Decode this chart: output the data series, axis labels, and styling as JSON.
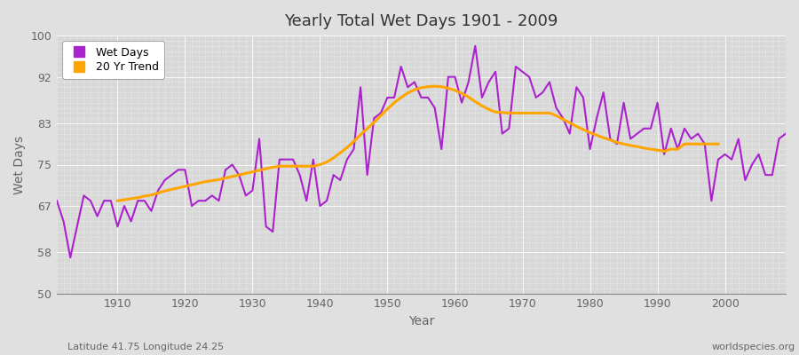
{
  "title": "Yearly Total Wet Days 1901 - 2009",
  "xlabel": "Year",
  "ylabel": "Wet Days",
  "xlim": [
    1901,
    2009
  ],
  "ylim": [
    50,
    100
  ],
  "yticks": [
    50,
    58,
    67,
    75,
    83,
    92,
    100
  ],
  "xticks": [
    1910,
    1920,
    1930,
    1940,
    1950,
    1960,
    1970,
    1980,
    1990,
    2000
  ],
  "line_color": "#AA22CC",
  "trend_color": "#FFA500",
  "fig_bg_color": "#E0E0E0",
  "plot_bg_color": "#D8D8D8",
  "grid_color": "#FFFFFF",
  "tick_label_color": "#666666",
  "footnote_left": "Latitude 41.75 Longitude 24.25",
  "footnote_right": "worldspecies.org",
  "legend_labels": [
    "Wet Days",
    "20 Yr Trend"
  ],
  "wet_days": [
    68,
    64,
    57,
    63,
    69,
    68,
    65,
    68,
    68,
    63,
    67,
    64,
    68,
    68,
    66,
    70,
    72,
    73,
    74,
    74,
    67,
    68,
    68,
    69,
    68,
    74,
    75,
    73,
    69,
    70,
    80,
    63,
    62,
    76,
    76,
    76,
    73,
    68,
    76,
    67,
    68,
    73,
    72,
    76,
    78,
    90,
    73,
    84,
    85,
    88,
    88,
    94,
    90,
    91,
    88,
    88,
    86,
    78,
    92,
    92,
    87,
    91,
    98,
    88,
    91,
    93,
    81,
    82,
    94,
    93,
    92,
    88,
    89,
    91,
    86,
    84,
    81,
    90,
    88,
    78,
    84,
    89,
    80,
    79,
    87,
    80,
    81,
    82,
    82,
    87,
    77,
    82,
    78,
    82,
    80,
    81,
    79,
    68,
    76,
    77,
    76,
    80,
    72,
    75,
    77,
    73,
    73,
    80,
    81
  ],
  "trend": [
    null,
    null,
    null,
    null,
    null,
    null,
    null,
    null,
    null,
    68.0,
    68.2,
    68.4,
    68.6,
    68.9,
    69.1,
    69.5,
    69.9,
    70.2,
    70.5,
    70.8,
    71.1,
    71.4,
    71.7,
    71.9,
    72.1,
    72.4,
    72.7,
    73.0,
    73.3,
    73.6,
    73.9,
    74.2,
    74.5,
    74.7,
    74.7,
    74.7,
    74.7,
    74.7,
    74.7,
    75.0,
    75.5,
    76.3,
    77.3,
    78.3,
    79.5,
    80.8,
    82.0,
    83.2,
    84.5,
    85.8,
    87.0,
    88.0,
    88.9,
    89.5,
    89.9,
    90.1,
    90.2,
    90.1,
    89.8,
    89.4,
    88.8,
    88.1,
    87.2,
    86.4,
    85.7,
    85.2,
    85.1,
    85.0,
    85.0,
    85.0,
    85.0,
    85.0,
    85.0,
    85.0,
    84.5,
    83.8,
    83.1,
    82.4,
    81.8,
    81.2,
    80.7,
    80.2,
    79.8,
    79.3,
    79.0,
    78.7,
    78.5,
    78.2,
    78.0,
    77.8,
    77.6,
    78.0,
    78.0,
    79.0,
    79.0,
    79.0,
    79.0,
    79.0,
    79.0,
    null,
    null,
    null,
    null,
    null,
    null,
    null,
    null,
    null,
    null,
    null
  ]
}
